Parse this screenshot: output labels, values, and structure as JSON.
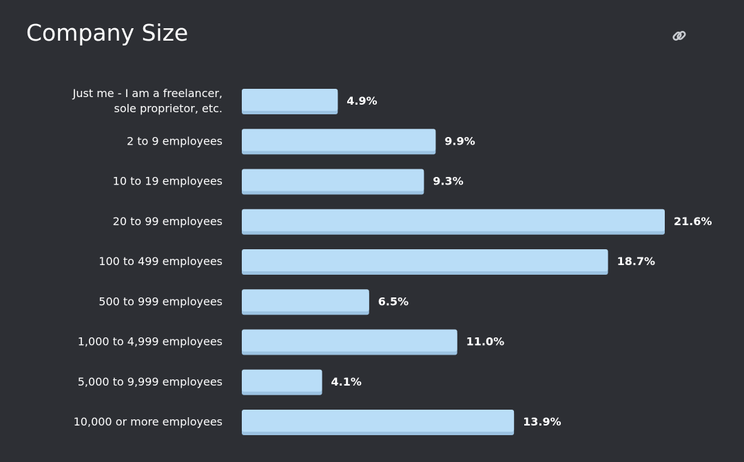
{
  "header": {
    "title": "Company Size",
    "link_icon": "link-icon"
  },
  "colors": {
    "background": "#2d2f34",
    "bar": "#b9ddf7",
    "bar_shadow": "#9cc3e2",
    "text": "#ffffff"
  },
  "chart_data": {
    "type": "bar",
    "orientation": "horizontal",
    "title": "Company Size",
    "categories": [
      [
        "Just me - I am a freelancer,",
        "sole proprietor, etc."
      ],
      [
        "2 to 9 employees"
      ],
      [
        "10 to 19 employees"
      ],
      [
        "20 to 99 employees"
      ],
      [
        "100 to 499 employees"
      ],
      [
        "500 to 999 employees"
      ],
      [
        "1,000 to 4,999 employees"
      ],
      [
        "5,000 to 9,999 employees"
      ],
      [
        "10,000 or more employees"
      ]
    ],
    "values": [
      4.9,
      9.9,
      9.3,
      21.6,
      18.7,
      6.5,
      11.0,
      4.1,
      13.9
    ],
    "value_labels": [
      "4.9%",
      "9.9%",
      "9.3%",
      "21.6%",
      "18.7%",
      "6.5%",
      "11.0%",
      "4.1%",
      "13.9%"
    ],
    "unit": "%",
    "xlim": [
      0,
      21.6
    ],
    "grid": false,
    "legend": "none"
  }
}
